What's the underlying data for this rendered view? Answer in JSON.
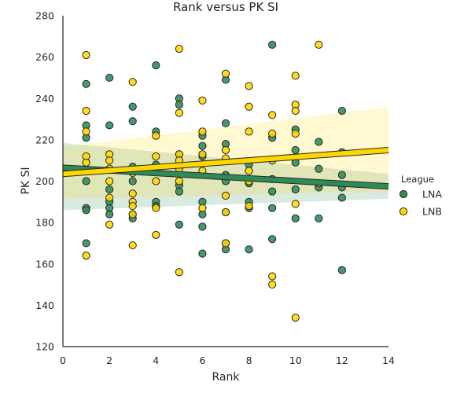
{
  "chart_data": {
    "type": "scatter",
    "title": "Rank versus PK SI",
    "xlabel": "Rank",
    "ylabel": "PK SI",
    "xlim": [
      0,
      14
    ],
    "ylim": [
      120,
      280
    ],
    "xticks": [
      "0",
      "2",
      "4",
      "6",
      "8",
      "10",
      "12",
      "14"
    ],
    "yticks": [
      "120",
      "140",
      "160",
      "180",
      "200",
      "220",
      "240",
      "260",
      "280"
    ],
    "grid": false,
    "legend": {
      "title": "League",
      "placement": "right"
    },
    "series": [
      {
        "name": "LNA",
        "color": "#2e8b57",
        "points": [
          [
            1,
            247
          ],
          [
            1,
            227
          ],
          [
            1,
            221
          ],
          [
            1,
            200
          ],
          [
            1,
            187
          ],
          [
            1,
            186
          ],
          [
            1,
            170
          ],
          [
            2,
            250
          ],
          [
            2,
            227
          ],
          [
            2,
            196
          ],
          [
            2,
            190
          ],
          [
            2,
            187
          ],
          [
            2,
            184
          ],
          [
            3,
            236
          ],
          [
            3,
            229
          ],
          [
            3,
            207
          ],
          [
            3,
            200
          ],
          [
            3,
            184
          ],
          [
            3,
            182
          ],
          [
            4,
            256
          ],
          [
            4,
            224
          ],
          [
            4,
            208
          ],
          [
            4,
            190
          ],
          [
            4,
            188
          ],
          [
            5,
            240
          ],
          [
            5,
            237
          ],
          [
            5,
            213
          ],
          [
            5,
            207
          ],
          [
            5,
            198
          ],
          [
            5,
            195
          ],
          [
            5,
            179
          ],
          [
            6,
            222
          ],
          [
            6,
            217
          ],
          [
            6,
            212
          ],
          [
            6,
            190
          ],
          [
            6,
            184
          ],
          [
            6,
            178
          ],
          [
            6,
            165
          ],
          [
            7,
            249
          ],
          [
            7,
            228
          ],
          [
            7,
            218
          ],
          [
            7,
            203
          ],
          [
            7,
            200
          ],
          [
            7,
            185
          ],
          [
            7,
            170
          ],
          [
            7,
            167
          ],
          [
            8,
            208
          ],
          [
            8,
            199
          ],
          [
            8,
            190
          ],
          [
            8,
            187
          ],
          [
            8,
            167
          ],
          [
            9,
            266
          ],
          [
            9,
            221
          ],
          [
            9,
            210
          ],
          [
            9,
            201
          ],
          [
            9,
            195
          ],
          [
            9,
            187
          ],
          [
            9,
            172
          ],
          [
            10,
            225
          ],
          [
            10,
            215
          ],
          [
            10,
            209
          ],
          [
            10,
            196
          ],
          [
            10,
            182
          ],
          [
            11,
            219
          ],
          [
            11,
            206
          ],
          [
            11,
            197
          ],
          [
            11,
            182
          ],
          [
            12,
            234
          ],
          [
            12,
            214
          ],
          [
            12,
            203
          ],
          [
            12,
            197
          ],
          [
            12,
            192
          ],
          [
            12,
            157
          ]
        ],
        "regression": {
          "x0": 0,
          "y0": 206.5,
          "x1": 14,
          "y1": 197.5
        },
        "ci": {
          "lower": [
            186,
            191.5
          ],
          "upper": [
            218.5,
            203.5
          ]
        }
      },
      {
        "name": "LNB",
        "color": "#ffd700",
        "points": [
          [
            1,
            261
          ],
          [
            1,
            234
          ],
          [
            1,
            224
          ],
          [
            1,
            212
          ],
          [
            1,
            209
          ],
          [
            1,
            164
          ],
          [
            2,
            213
          ],
          [
            2,
            210
          ],
          [
            2,
            206
          ],
          [
            2,
            200
          ],
          [
            2,
            192
          ],
          [
            2,
            179
          ],
          [
            3,
            248
          ],
          [
            3,
            204
          ],
          [
            3,
            194
          ],
          [
            3,
            190
          ],
          [
            3,
            188
          ],
          [
            3,
            184
          ],
          [
            3,
            169
          ],
          [
            4,
            222
          ],
          [
            4,
            212
          ],
          [
            4,
            206
          ],
          [
            4,
            200
          ],
          [
            4,
            187
          ],
          [
            4,
            174
          ],
          [
            5,
            264
          ],
          [
            5,
            233
          ],
          [
            5,
            213
          ],
          [
            5,
            210
          ],
          [
            5,
            206
          ],
          [
            5,
            200
          ],
          [
            5,
            156
          ],
          [
            6,
            239
          ],
          [
            6,
            224
          ],
          [
            6,
            213
          ],
          [
            6,
            205
          ],
          [
            6,
            187
          ],
          [
            7,
            252
          ],
          [
            7,
            215
          ],
          [
            7,
            211
          ],
          [
            7,
            193
          ],
          [
            7,
            185
          ],
          [
            7,
            170
          ],
          [
            8,
            246
          ],
          [
            8,
            236
          ],
          [
            8,
            224
          ],
          [
            8,
            205
          ],
          [
            8,
            200
          ],
          [
            8,
            188
          ],
          [
            9,
            232
          ],
          [
            9,
            223
          ],
          [
            9,
            210
          ],
          [
            9,
            154
          ],
          [
            9,
            150
          ],
          [
            10,
            251
          ],
          [
            10,
            237
          ],
          [
            10,
            234
          ],
          [
            10,
            223
          ],
          [
            10,
            189
          ],
          [
            10,
            134
          ],
          [
            11,
            266
          ],
          [
            11,
            199
          ]
        ],
        "regression": {
          "x0": 0,
          "y0": 203.5,
          "x1": 14,
          "y1": 215.0
        },
        "ci": {
          "lower": [
            191.5,
            195.0
          ],
          "upper": [
            216.5,
            236.0
          ]
        }
      }
    ]
  }
}
